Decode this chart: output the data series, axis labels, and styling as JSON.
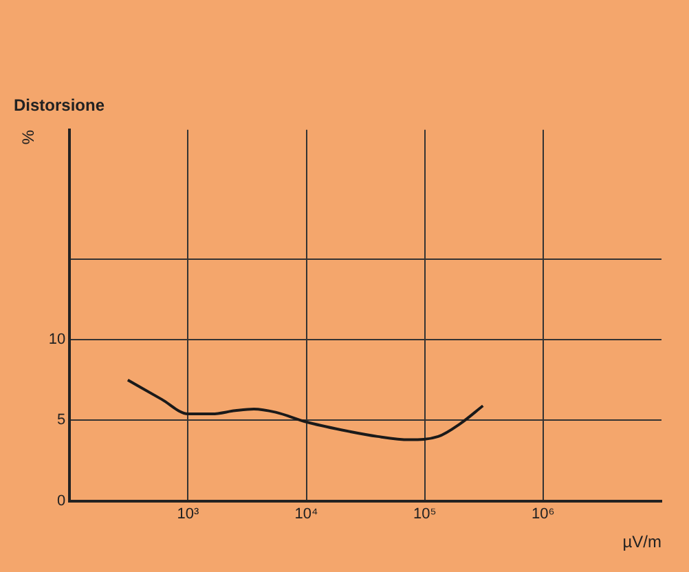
{
  "chart_data": {
    "type": "line",
    "title": "Distorsione",
    "ylabel": "%",
    "xlabel": "µV/m",
    "x": [
      310,
      600,
      1000,
      1600,
      2500,
      3600,
      5500,
      10000,
      20000,
      40000,
      74000,
      130000,
      200000,
      310000
    ],
    "values": [
      7.5,
      6.3,
      5.4,
      5.4,
      5.6,
      5.7,
      5.5,
      4.9,
      4.4,
      4.0,
      3.8,
      4.0,
      4.8,
      5.9
    ],
    "color": "#1a1a1a",
    "log": "x",
    "xlim": [
      100,
      10000000
    ],
    "xticks": [
      {
        "value": 1000,
        "label": "10³"
      },
      {
        "value": 10000,
        "label": "10⁴"
      },
      {
        "value": 100000,
        "label": "10⁵"
      },
      {
        "value": 1000000,
        "label": "10⁶"
      }
    ],
    "ylim": [
      0,
      23
    ],
    "yticks": [
      0,
      5,
      10,
      {
        "value": 15,
        "label": null
      }
    ],
    "grid": true,
    "marker": "none",
    "line_style": "solid"
  }
}
